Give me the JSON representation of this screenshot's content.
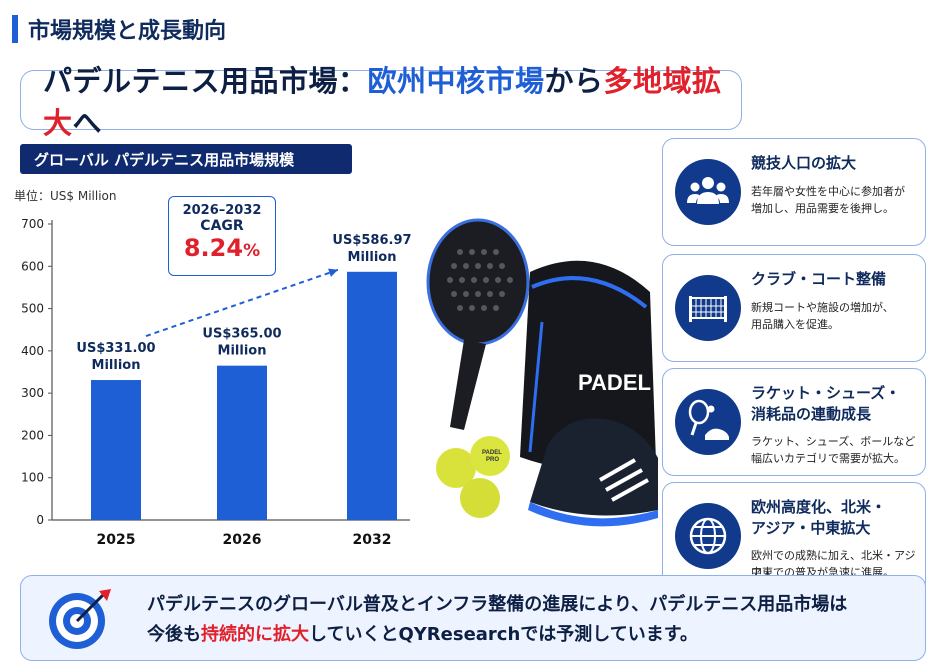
{
  "header": {
    "title": "市場規模と成長動向"
  },
  "main_title": {
    "part1": "パデルテニス用品市場：",
    "part2": "欧州中核市場",
    "part3": "から",
    "part4": "多地域拡大",
    "part5": "へ"
  },
  "chart_label": "グローバル パデルテニス用品市場規模",
  "cagr": {
    "years": "2026–2032",
    "label": "CAGR",
    "value": "8.24",
    "unit": "%"
  },
  "chart_data": {
    "type": "bar",
    "title": "グローバル パデルテニス用品市場規模",
    "unit_label": "単位：US$ Million",
    "categories": [
      "2025",
      "2026",
      "2032"
    ],
    "values": [
      331.0,
      365.0,
      586.97
    ],
    "data_labels": [
      [
        "US$331.00",
        "Million"
      ],
      [
        "US$365.00",
        "Million"
      ],
      [
        "US$586.97",
        "Million"
      ]
    ],
    "ylim": [
      0,
      700
    ],
    "yticks": [
      0,
      100,
      200,
      300,
      400,
      500,
      600,
      700
    ],
    "colors": {
      "bar": "#1f5fd6",
      "axis": "#555555",
      "label": "#0f2a5c"
    }
  },
  "cards": [
    {
      "title": [
        "競技人口の拡大"
      ],
      "text": [
        "若年層や女性を中心に参加者が",
        "増加し、用品需要を後押し。"
      ],
      "icon": "people-icon"
    },
    {
      "title": [
        "クラブ・コート整備"
      ],
      "text": [
        "新規コートや施設の増加が、",
        "用品購入を促進。"
      ],
      "icon": "court-icon"
    },
    {
      "title": [
        "ラケット・シューズ・",
        "消耗品の連動成長"
      ],
      "text": [
        "ラケット、シューズ、ボールなど",
        "幅広いカテゴリで需要が拡大。"
      ],
      "icon": "racket-shoe-icon"
    },
    {
      "title": [
        "欧州高度化、北米・",
        "アジア・中東拡大"
      ],
      "text": [
        "欧州での成熟に加え、北米・アジア・",
        "中東での普及が急速に進展。"
      ],
      "icon": "globe-icon"
    }
  ],
  "photo": {
    "bag_text": "PADEL",
    "ball_text": [
      "PADEL",
      "PRO"
    ]
  },
  "bottom": {
    "line1": "パデルテニスのグローバル普及とインフラ整備の進展により、パデルテニス用品市場は",
    "line2_a": "今後も",
    "line2_red": "持続的に拡大",
    "line2_b": "していくとQYResearchでは予測しています。"
  }
}
